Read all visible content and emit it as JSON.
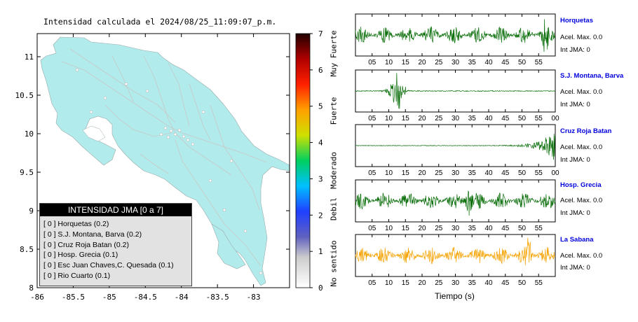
{
  "map": {
    "title": "Intensidad calculada el 2024/08/25_11:09:07_p.m.",
    "x_ticks": [
      "-86",
      "-85.5",
      "-85",
      "-84.5",
      "-84",
      "-83.5",
      "-83"
    ],
    "y_ticks": [
      "8",
      "8.5",
      "9",
      "9.5",
      "10",
      "10.5",
      "11"
    ]
  },
  "colorbar": {
    "ticks": [
      "0",
      "1",
      "2",
      "3",
      "4",
      "5",
      "6",
      "7"
    ],
    "labels": [
      "No sentido",
      "Debil",
      "Moderado",
      "Fuerte",
      "Muy Fuerte"
    ]
  },
  "legend": {
    "header": "INTENSIDAD JMA [0 a 7]",
    "items": [
      "[ 0 ]  Horquetas (0.2)",
      "[ 0 ]  S.J. Montana, Barva (0.2)",
      "[ 0 ]  Cruz Roja Batan (0.2)",
      "[ 0 ]  Hosp. Grecia (0.1)",
      "[ 0 ]  Esc Juan Chaves,C. Quesada (0.1)",
      "[ 0 ]  Rio Cuarto (0.1)"
    ]
  },
  "stations": [
    {
      "name": "Horquetas",
      "accel": "Acel. Max. 0.0",
      "jma": "Int JMA: 0",
      "ticks": [
        "05",
        "10",
        "15",
        "20",
        "25",
        "30",
        "35",
        "40",
        "45",
        "50",
        "55"
      ],
      "color": "#0a6e0a"
    },
    {
      "name": "S.J. Montana, Barva",
      "accel": "Acel. Max. 0.0",
      "jma": "Int JMA: 0",
      "ticks": [
        "05",
        "10",
        "15",
        "20",
        "25",
        "30",
        "35",
        "40",
        "45",
        "50",
        "55",
        "00"
      ],
      "color": "#0a6e0a"
    },
    {
      "name": "Cruz Roja Batan",
      "accel": "Acel. Max. 0.0",
      "jma": "Int JMA: 0",
      "ticks": [
        "05",
        "10",
        "15",
        "20",
        "25",
        "30",
        "35",
        "40",
        "45",
        "50",
        "55",
        "00"
      ],
      "color": "#0a6e0a"
    },
    {
      "name": "Hosp. Grecia",
      "accel": "Acel. Max. 0.0",
      "jma": "Int JMA: 0",
      "ticks": [
        "05",
        "10",
        "15",
        "20",
        "25",
        "30",
        "35",
        "40",
        "45",
        "50",
        "55"
      ],
      "color": "#0a6e0a"
    },
    {
      "name": "La Sabana",
      "accel": "Acel. Max. 0.0",
      "jma": "Int JMA: 0",
      "ticks": [
        "05",
        "10",
        "15",
        "20",
        "25",
        "30",
        "35",
        "40",
        "45",
        "50",
        "55"
      ],
      "color": "#f5a300"
    }
  ],
  "time_axis_label": "Tiempo (s)",
  "chart_data": [
    {
      "type": "map",
      "title": "Intensidad calculada el 2024/08/25_11:09:07_p.m.",
      "xlim": [
        -86,
        -82.5
      ],
      "ylim": [
        8,
        11.3
      ],
      "colorbar_range": [
        0,
        7
      ],
      "stations_jma": [
        {
          "name": "Horquetas",
          "value": 0.2
        },
        {
          "name": "S.J. Montana, Barva",
          "value": 0.2
        },
        {
          "name": "Cruz Roja Batan",
          "value": 0.2
        },
        {
          "name": "Hosp. Grecia",
          "value": 0.1
        },
        {
          "name": "Esc Juan Chaves,C. Quesada",
          "value": 0.1
        },
        {
          "name": "Rio Cuarto",
          "value": 0.1
        }
      ]
    },
    {
      "type": "line",
      "xlabel": "Tiempo (s)",
      "xlim": [
        0,
        60
      ],
      "series": [
        {
          "name": "Horquetas",
          "peak_time": 57,
          "profile": "continuous"
        },
        {
          "name": "S.J. Montana, Barva",
          "peak_time": 13,
          "profile": "burst"
        },
        {
          "name": "Cruz Roja Batan",
          "peak_time": 59,
          "profile": "rising"
        },
        {
          "name": "Hosp. Grecia",
          "peak_time": 34,
          "profile": "continuous"
        },
        {
          "name": "La Sabana",
          "peak_time": 52,
          "profile": "continuous"
        }
      ]
    }
  ]
}
